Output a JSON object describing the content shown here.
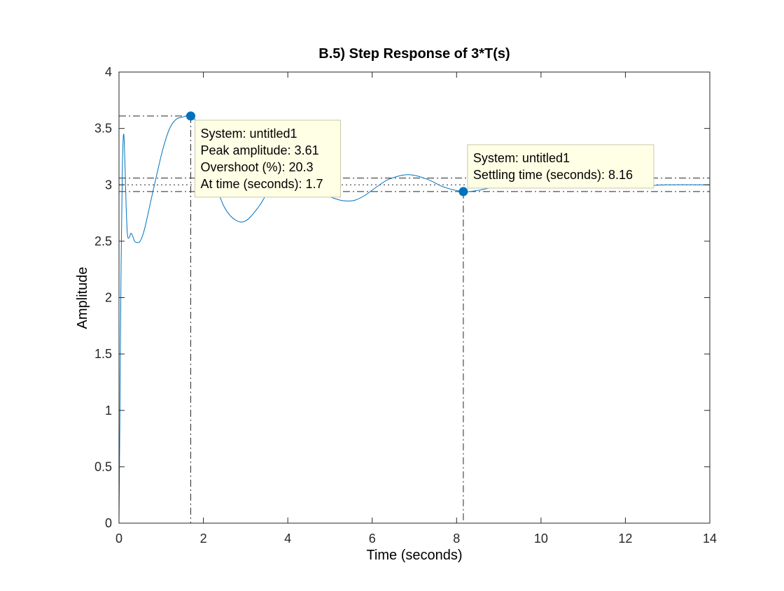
{
  "chart_data": {
    "type": "line",
    "title": "B.5) Step Response of 3*T(s)",
    "xlabel": "Time (seconds)",
    "ylabel": "Amplitude",
    "xlim": [
      0,
      14
    ],
    "ylim": [
      0,
      4
    ],
    "xticks": [
      0,
      2,
      4,
      6,
      8,
      10,
      12,
      14
    ],
    "yticks": [
      0,
      0.5,
      1,
      1.5,
      2,
      2.5,
      3,
      3.5,
      4
    ],
    "grid": false,
    "colors": {
      "line": "#0072BD",
      "marker": "#0072BD",
      "reference": "#262626",
      "tooltip_bg": "#FFFFE6",
      "tooltip_border": "#C8C8A8"
    },
    "series": [
      {
        "x": [
          0,
          0.02,
          0.05,
          0.08,
          0.11,
          0.14,
          0.17,
          0.2,
          0.24,
          0.28,
          0.32,
          0.37,
          0.42,
          0.5,
          0.6,
          0.75,
          0.9,
          1.05,
          1.2,
          1.35,
          1.5,
          1.7,
          1.9,
          2.1,
          2.3,
          2.5,
          2.75,
          3.0,
          3.3,
          3.6,
          3.9,
          4.2,
          4.5,
          4.8,
          5.1,
          5.3,
          5.55,
          5.8,
          6.1,
          6.4,
          6.85,
          7.3,
          7.7,
          8.16,
          8.5,
          9.0,
          9.5,
          10.0,
          10.7,
          11.5,
          12.3,
          13.0,
          14.0
        ],
        "y": [
          0,
          0.9,
          2.3,
          3.15,
          3.45,
          3.2,
          2.8,
          2.56,
          2.53,
          2.57,
          2.55,
          2.5,
          2.49,
          2.5,
          2.6,
          2.85,
          3.1,
          3.33,
          3.5,
          3.58,
          3.6,
          3.61,
          3.52,
          3.3,
          3.0,
          2.8,
          2.69,
          2.68,
          2.8,
          2.97,
          3.03,
          3.0,
          2.95,
          2.92,
          2.88,
          2.86,
          2.86,
          2.9,
          2.98,
          3.05,
          3.09,
          3.05,
          2.98,
          2.94,
          2.95,
          2.99,
          3.01,
          3.02,
          3.01,
          3.0,
          2.99,
          3.0,
          3.0
        ]
      }
    ],
    "reference_lines": {
      "steady_state": 3.0,
      "settling_upper": 3.06,
      "settling_lower": 2.94,
      "peak_y": 3.61,
      "peak_x": 1.7,
      "settling_x": 8.16
    },
    "data_tips": [
      {
        "x": 1.7,
        "y": 3.61,
        "lines": [
          "System: untitled1",
          "Peak amplitude: 3.61",
          "Overshoot (%): 20.3",
          "At time (seconds): 1.7"
        ]
      },
      {
        "x": 8.16,
        "y": 2.94,
        "lines": [
          "System: untitled1",
          "Settling time (seconds): 8.16"
        ]
      }
    ]
  }
}
